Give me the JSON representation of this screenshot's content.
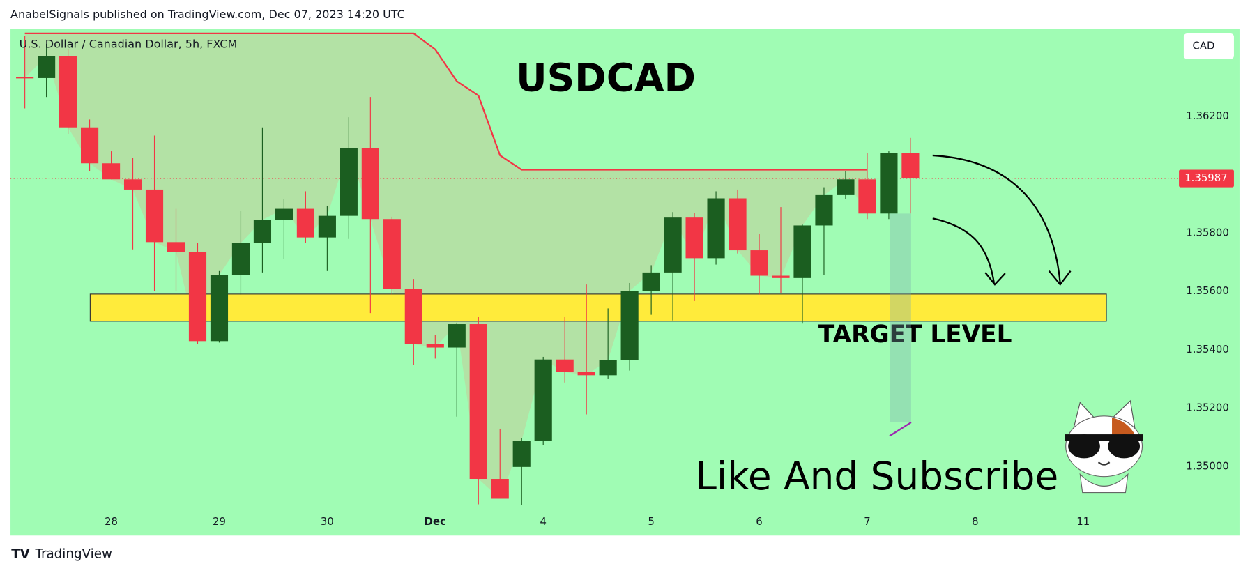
{
  "header": "AnabelSignals published on TradingView.com, Dec 07, 2023 14:20 UTC",
  "footer": "TradingView",
  "chart_data": {
    "type": "candlestick",
    "symbol": "U.S. Dollar / Canadian Dollar, 5h, FXCM",
    "currency": "CAD",
    "title": "USDCAD",
    "annotations": {
      "target": "TARGET LEVEL",
      "cta": "Like And Subscribe"
    },
    "up_color": "#1b5e20",
    "down_color": "#f23645",
    "background": "#a0fcb4",
    "open": [
      1.36334,
      1.36331,
      1.36407,
      1.36162,
      1.36039,
      1.35984,
      1.35949,
      1.35769,
      1.35736,
      1.3543,
      1.35657,
      1.35766,
      1.35845,
      1.35883,
      1.35785,
      1.35859,
      1.36091,
      1.35848,
      1.35608,
      1.35419,
      1.35408,
      1.35488,
      1.34958,
      1.34999,
      1.35089,
      1.35367,
      1.35324,
      1.35313,
      1.35365,
      1.35602,
      1.35665,
      1.35853,
      1.35714,
      1.35919,
      1.35741,
      1.35654,
      1.35646,
      1.35826,
      1.3593,
      1.35984,
      1.35867,
      1.36074
    ],
    "high": [
      1.36476,
      1.36448,
      1.36429,
      1.36189,
      1.3608,
      1.36058,
      1.36134,
      1.35883,
      1.35766,
      1.3567,
      1.35875,
      1.36162,
      1.35916,
      1.35943,
      1.35894,
      1.36197,
      1.36266,
      1.35856,
      1.35643,
      1.35452,
      1.35493,
      1.35512,
      1.3513,
      1.35097,
      1.35376,
      1.35512,
      1.35624,
      1.35542,
      1.35629,
      1.3569,
      1.35872,
      1.3587,
      1.35943,
      1.35949,
      1.35796,
      1.35889,
      1.35829,
      1.35957,
      1.36012,
      1.36074,
      1.3608,
      1.36126
    ],
    "low": [
      1.36227,
      1.36266,
      1.3614,
      1.36012,
      1.35984,
      1.35744,
      1.35602,
      1.35602,
      1.35419,
      1.35425,
      1.35589,
      1.35665,
      1.35711,
      1.35766,
      1.3567,
      1.3578,
      1.35526,
      1.35589,
      1.35348,
      1.3537,
      1.35171,
      1.34871,
      1.3489,
      1.34868,
      1.35075,
      1.35288,
      1.35179,
      1.35302,
      1.35329,
      1.3552,
      1.35501,
      1.35567,
      1.35692,
      1.3573,
      1.35589,
      1.35594,
      1.3549,
      1.35657,
      1.35916,
      1.35848,
      1.35848,
      1.35867
    ],
    "close": [
      1.36331,
      1.36407,
      1.36162,
      1.36039,
      1.35984,
      1.35949,
      1.35769,
      1.35736,
      1.3543,
      1.35657,
      1.35766,
      1.35845,
      1.35883,
      1.35785,
      1.35859,
      1.36091,
      1.35848,
      1.35608,
      1.35419,
      1.35408,
      1.35488,
      1.34958,
      1.3489,
      1.35089,
      1.35367,
      1.35324,
      1.35313,
      1.35365,
      1.35602,
      1.35665,
      1.35853,
      1.35714,
      1.35919,
      1.35741,
      1.35654,
      1.35646,
      1.35826,
      1.3593,
      1.35984,
      1.35867,
      1.36074,
      1.35987
    ],
    "stop_line": {
      "color": "#f23645",
      "values": [
        1.36484,
        1.36484,
        1.36484,
        1.36484,
        1.36484,
        1.36484,
        1.36484,
        1.36484,
        1.36484,
        1.36484,
        1.36484,
        1.36484,
        1.36484,
        1.36484,
        1.36484,
        1.36484,
        1.36484,
        1.36484,
        1.36484,
        1.36429,
        1.3632,
        1.36271,
        1.36066,
        1.36017,
        1.36017,
        1.36017,
        1.36017,
        1.36017,
        1.36017,
        1.36017,
        1.36017,
        1.36017,
        1.36017,
        1.36017,
        1.36017,
        1.36017,
        1.36017,
        1.36017,
        1.36017,
        1.36017,
        null,
        null
      ]
    },
    "target_zone": {
      "values": [
        1.35498,
        1.35591
      ],
      "color": "#ffeb3b"
    },
    "last_price": {
      "value": 1.35987,
      "color": "#f23645"
    },
    "ylim": [
      1.34764,
      1.365
    ],
    "yticks": [
      {
        "value": 1.35,
        "label": "1.35000"
      },
      {
        "value": 1.352,
        "label": "1.35200"
      },
      {
        "value": 1.354,
        "label": "1.35400"
      },
      {
        "value": 1.356,
        "label": "1.35600"
      },
      {
        "value": 1.358,
        "label": "1.35800"
      },
      {
        "value": 1.362,
        "label": "1.36200"
      }
    ],
    "xticks": [
      "28",
      "29",
      "30",
      "Dec",
      "4",
      "5",
      "6",
      "7",
      "8",
      "11"
    ]
  }
}
